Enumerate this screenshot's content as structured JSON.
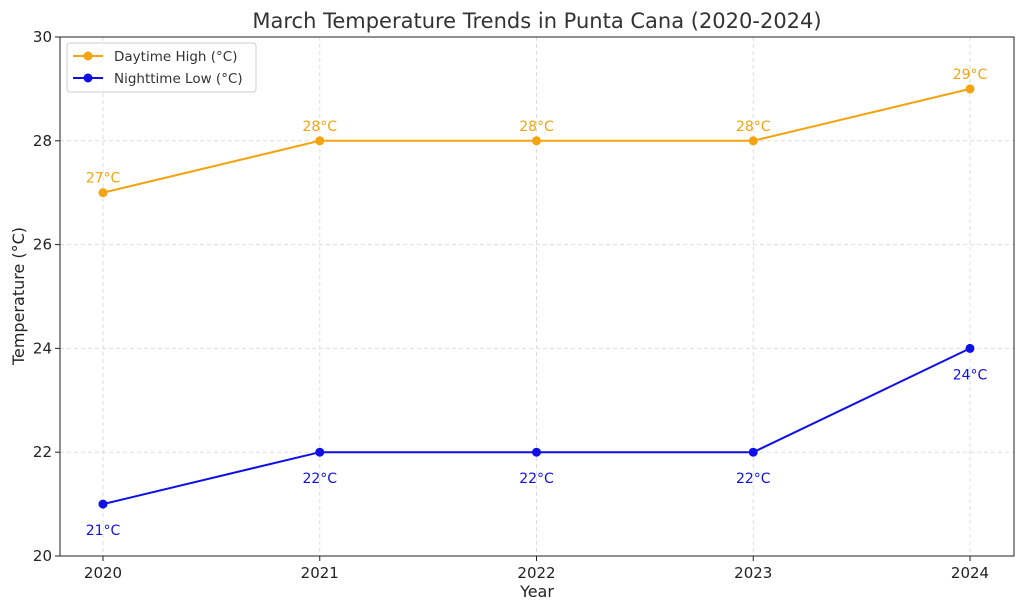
{
  "chart_data": {
    "type": "line",
    "title": "March Temperature Trends in Punta Cana (2020-2024)",
    "xlabel": "Year",
    "ylabel": "Temperature (°C)",
    "categories": [
      "2020",
      "2021",
      "2022",
      "2023",
      "2024"
    ],
    "ylim": [
      20,
      30
    ],
    "yticks": [
      "20",
      "22",
      "24",
      "26",
      "28",
      "30"
    ],
    "grid": true,
    "legend_position": "top-left",
    "series": [
      {
        "name": "Daytime High (°C)",
        "color": "#f5a30f",
        "values": [
          27,
          28,
          28,
          28,
          29
        ],
        "labels": [
          "27°C",
          "28°C",
          "28°C",
          "28°C",
          "29°C"
        ],
        "label_position": "above"
      },
      {
        "name": "Nighttime Low (°C)",
        "color": "#1010e6",
        "values": [
          21,
          22,
          22,
          22,
          24
        ],
        "labels": [
          "21°C",
          "22°C",
          "22°C",
          "22°C",
          "24°C"
        ],
        "label_position": "below"
      }
    ]
  }
}
